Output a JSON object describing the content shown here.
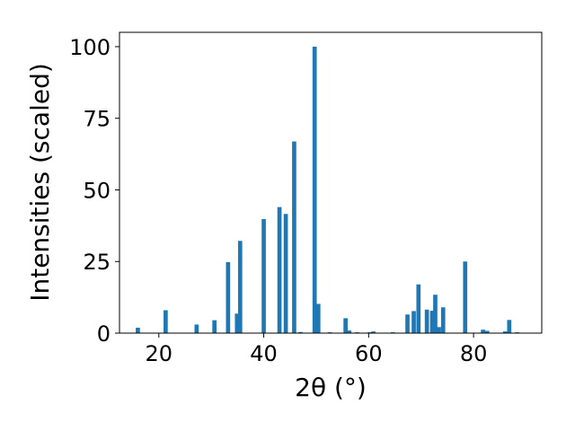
{
  "chart_data": {
    "type": "bar",
    "xlabel": "2θ (°)",
    "ylabel": "Intensities (scaled)",
    "xlim": [
      12.5,
      93
    ],
    "ylim": [
      0,
      105
    ],
    "xticks": [
      20,
      40,
      60,
      80
    ],
    "yticks": [
      0,
      25,
      50,
      75,
      100
    ],
    "bar_color": "#1f77b4",
    "bar_width": 0.8,
    "grid": false,
    "x": [
      16.0,
      21.3,
      27.2,
      30.6,
      33.2,
      34.9,
      35.5,
      40.0,
      43.0,
      44.2,
      45.8,
      47.0,
      49.7,
      50.4,
      52.6,
      55.6,
      56.3,
      57.8,
      60.2,
      60.9,
      64.6,
      67.4,
      68.6,
      69.5,
      71.1,
      72.1,
      72.7,
      73.4,
      74.2,
      78.4,
      81.8,
      82.6,
      86.0,
      86.8,
      88.3
    ],
    "values": [
      1.9,
      8.0,
      3.0,
      4.5,
      24.8,
      6.8,
      32.2,
      39.8,
      44.0,
      41.6,
      66.9,
      0.4,
      100.0,
      10.2,
      0.3,
      5.2,
      0.9,
      0.3,
      0.3,
      0.6,
      0.3,
      6.5,
      7.7,
      17.0,
      8.2,
      7.8,
      13.4,
      2.1,
      9.0,
      25.0,
      1.2,
      0.8,
      0.6,
      4.6,
      0.3
    ]
  }
}
